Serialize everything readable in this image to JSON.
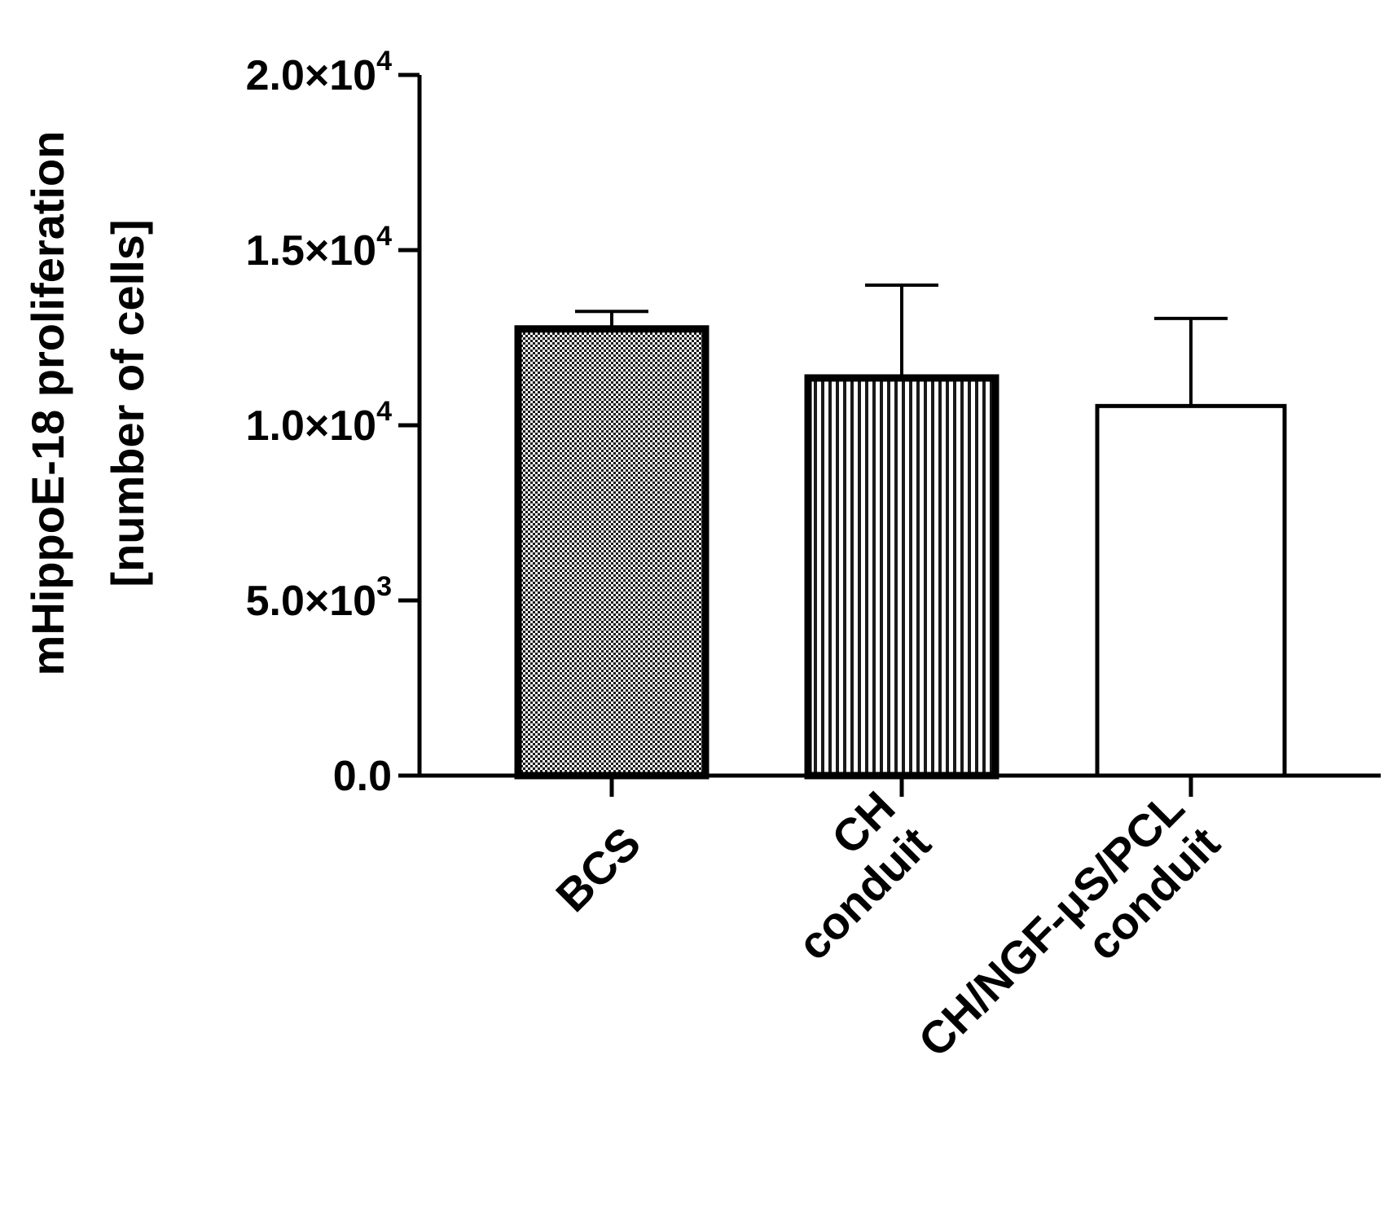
{
  "chart_data": {
    "type": "bar",
    "title": "",
    "xlabel": "",
    "ylabel_lines": [
      "mHippoE-18 proliferation",
      "[number of cells]"
    ],
    "ylim": [
      0,
      20000
    ],
    "yticks": [
      {
        "value": 0,
        "mantissa": "0.0",
        "exponent": ""
      },
      {
        "value": 5000,
        "mantissa": "5.0×10",
        "exponent": "3"
      },
      {
        "value": 10000,
        "mantissa": "1.0×10",
        "exponent": "4"
      },
      {
        "value": 15000,
        "mantissa": "1.5×10",
        "exponent": "4"
      },
      {
        "value": 20000,
        "mantissa": "2.0×10",
        "exponent": "4"
      }
    ],
    "categories": [
      {
        "lines": [
          "BCS"
        ],
        "value": 12750,
        "error": 500,
        "pattern": "checker"
      },
      {
        "lines": [
          "CH",
          "conduit"
        ],
        "value": 11350,
        "error": 2650,
        "pattern": "vstripes"
      },
      {
        "lines": [
          "CH/NGF-μS/PCL",
          "conduit"
        ],
        "value": 10550,
        "error": 2500,
        "pattern": "none"
      }
    ],
    "grid": false,
    "legend": "none",
    "colors": {
      "axis": "#000000",
      "fill_plain": "#ffffff"
    }
  }
}
